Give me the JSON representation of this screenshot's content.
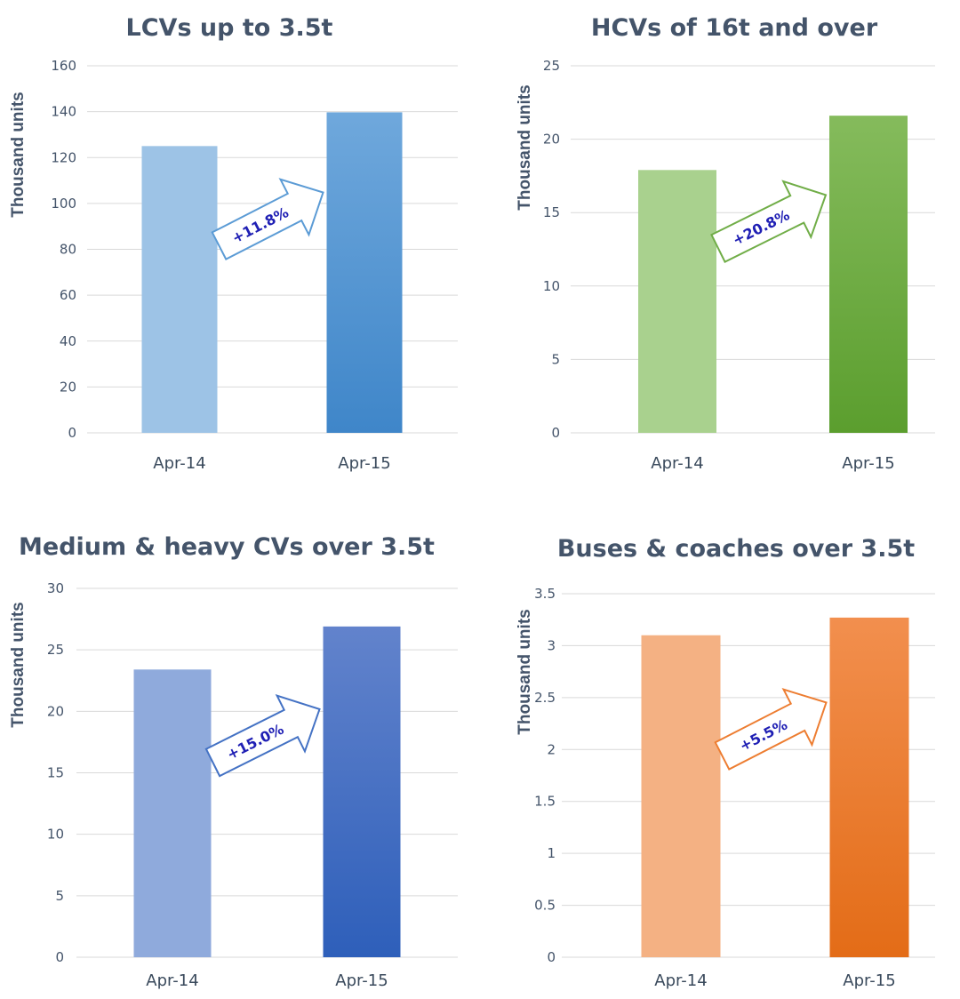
{
  "chart_data": [
    {
      "type": "bar",
      "title": "LCVs up to 3.5t",
      "ylabel": "Thousand units",
      "xlabel": "",
      "categories": [
        "Apr-14",
        "Apr-15"
      ],
      "values": [
        125,
        139.7
      ],
      "ylim": [
        0,
        160
      ],
      "yticks": [
        "0",
        "20",
        "40",
        "60",
        "80",
        "100",
        "120",
        "140",
        "160"
      ],
      "grid": true,
      "change_label": "+11.8%",
      "colors": {
        "bar1": "#9dc3e6",
        "bar2_top": "#6fa8dc",
        "bar2_bottom": "#3f86c9",
        "arrow": "#5b9bd5"
      }
    },
    {
      "type": "bar",
      "title": "HCVs of 16t and over",
      "ylabel": "Thousand units",
      "xlabel": "",
      "categories": [
        "Apr-14",
        "Apr-15"
      ],
      "values": [
        17.9,
        21.6
      ],
      "ylim": [
        0,
        25
      ],
      "yticks": [
        "0",
        "5",
        "10",
        "15",
        "20",
        "25"
      ],
      "grid": true,
      "change_label": "+20.8%",
      "colors": {
        "bar1": "#a9d18e",
        "bar2_top": "#85bb5c",
        "bar2_bottom": "#5b9e2e",
        "arrow": "#70ad47"
      }
    },
    {
      "type": "bar",
      "title": "Medium & heavy CVs over 3.5t",
      "ylabel": "Thousand units",
      "xlabel": "",
      "categories": [
        "Apr-14",
        "Apr-15"
      ],
      "values": [
        23.4,
        26.9
      ],
      "ylim": [
        0,
        30
      ],
      "yticks": [
        "0",
        "5",
        "10",
        "15",
        "20",
        "25",
        "30"
      ],
      "grid": true,
      "change_label": "+15.0%",
      "colors": {
        "bar1": "#8faadc",
        "bar2_top": "#6283cc",
        "bar2_bottom": "#2e5fba",
        "arrow": "#4472c4"
      }
    },
    {
      "type": "bar",
      "title": "Buses & coaches over 3.5t",
      "ylabel": "Thousand units",
      "xlabel": "",
      "categories": [
        "Apr-14",
        "Apr-15"
      ],
      "values": [
        3.1,
        3.27
      ],
      "ylim": [
        0,
        3.5
      ],
      "yticks": [
        "0",
        "0.5",
        "1",
        "1.5",
        "2",
        "2.5",
        "3",
        "3.5"
      ],
      "grid": true,
      "change_label": "+5.5%",
      "colors": {
        "bar1": "#f4b183",
        "bar2_top": "#f28f4e",
        "bar2_bottom": "#e36c17",
        "arrow": "#ed7d31"
      }
    }
  ]
}
